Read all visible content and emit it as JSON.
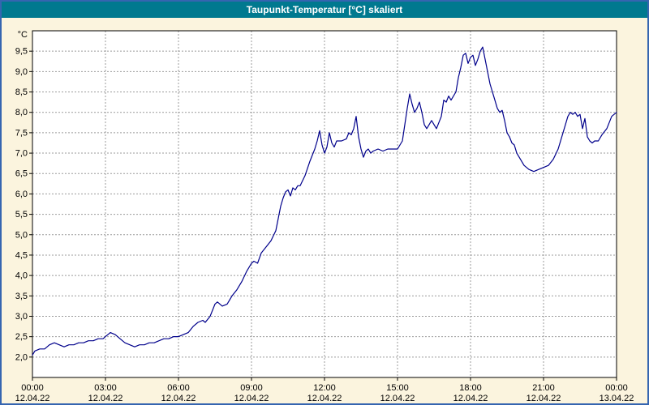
{
  "window": {
    "title": "Taupunkt-Temperatur [°C] skaliert"
  },
  "chart_data": {
    "type": "line",
    "title": "Taupunkt-Temperatur [°C] skaliert",
    "unit_label": "°C",
    "legend": "none",
    "grid": true,
    "x_min": 0,
    "x_max": 24,
    "y_min": 1.5,
    "y_max": 10.0,
    "y_ticks": [
      2.0,
      2.5,
      3.0,
      3.5,
      4.0,
      4.5,
      5.0,
      5.5,
      6.0,
      6.5,
      7.0,
      7.5,
      8.0,
      8.5,
      9.0,
      9.5
    ],
    "y_tick_labels": [
      "2,0",
      "2,5",
      "3,0",
      "3,5",
      "4,0",
      "4,5",
      "5,0",
      "5,5",
      "6,0",
      "6,5",
      "7,0",
      "7,5",
      "8,0",
      "8,5",
      "9,0",
      "9,5"
    ],
    "x_ticks": [
      {
        "hour": 0,
        "time": "00:00",
        "date": "12.04.22"
      },
      {
        "hour": 3,
        "time": "03:00",
        "date": "12.04.22"
      },
      {
        "hour": 6,
        "time": "06:00",
        "date": "12.04.22"
      },
      {
        "hour": 9,
        "time": "09:00",
        "date": "12.04.22"
      },
      {
        "hour": 12,
        "time": "12:00",
        "date": "12.04.22"
      },
      {
        "hour": 15,
        "time": "15:00",
        "date": "12.04.22"
      },
      {
        "hour": 18,
        "time": "18:00",
        "date": "12.04.22"
      },
      {
        "hour": 21,
        "time": "21:00",
        "date": "12.04.22"
      },
      {
        "hour": 24,
        "time": "00:00",
        "date": "13.04.22"
      }
    ],
    "colors": {
      "line": "#00008b",
      "grid": "#9b9b9b",
      "axis": "#000000",
      "plot_bg": "#ffffff",
      "page_bg": "#fbf4de",
      "title_bg": "#00798f",
      "title_fg": "#ffffff",
      "window_border": "#3565b0"
    },
    "series": [
      {
        "name": "Taupunkt-Temperatur",
        "points": [
          [
            0,
            2.05
          ],
          [
            0.1,
            2.15
          ],
          [
            0.3,
            2.2
          ],
          [
            0.5,
            2.2
          ],
          [
            0.7,
            2.3
          ],
          [
            0.9,
            2.35
          ],
          [
            1.1,
            2.3
          ],
          [
            1.3,
            2.25
          ],
          [
            1.5,
            2.3
          ],
          [
            1.7,
            2.3
          ],
          [
            1.9,
            2.35
          ],
          [
            2.1,
            2.35
          ],
          [
            2.3,
            2.4
          ],
          [
            2.5,
            2.4
          ],
          [
            2.7,
            2.45
          ],
          [
            2.9,
            2.45
          ],
          [
            3.0,
            2.5
          ],
          [
            3.2,
            2.6
          ],
          [
            3.4,
            2.55
          ],
          [
            3.6,
            2.45
          ],
          [
            3.8,
            2.35
          ],
          [
            4.0,
            2.3
          ],
          [
            4.2,
            2.25
          ],
          [
            4.4,
            2.3
          ],
          [
            4.6,
            2.3
          ],
          [
            4.8,
            2.35
          ],
          [
            5.0,
            2.35
          ],
          [
            5.2,
            2.4
          ],
          [
            5.4,
            2.45
          ],
          [
            5.6,
            2.45
          ],
          [
            5.8,
            2.5
          ],
          [
            6.0,
            2.5
          ],
          [
            6.2,
            2.55
          ],
          [
            6.4,
            2.6
          ],
          [
            6.6,
            2.75
          ],
          [
            6.8,
            2.85
          ],
          [
            7.0,
            2.9
          ],
          [
            7.1,
            2.85
          ],
          [
            7.3,
            3.0
          ],
          [
            7.5,
            3.3
          ],
          [
            7.6,
            3.35
          ],
          [
            7.8,
            3.25
          ],
          [
            8.0,
            3.3
          ],
          [
            8.2,
            3.5
          ],
          [
            8.4,
            3.65
          ],
          [
            8.6,
            3.85
          ],
          [
            8.8,
            4.1
          ],
          [
            9.0,
            4.3
          ],
          [
            9.1,
            4.35
          ],
          [
            9.25,
            4.3
          ],
          [
            9.4,
            4.55
          ],
          [
            9.6,
            4.7
          ],
          [
            9.8,
            4.85
          ],
          [
            10.0,
            5.1
          ],
          [
            10.1,
            5.4
          ],
          [
            10.2,
            5.7
          ],
          [
            10.3,
            5.9
          ],
          [
            10.4,
            6.05
          ],
          [
            10.5,
            6.1
          ],
          [
            10.6,
            5.95
          ],
          [
            10.7,
            6.15
          ],
          [
            10.8,
            6.1
          ],
          [
            10.9,
            6.2
          ],
          [
            11.0,
            6.2
          ],
          [
            11.2,
            6.45
          ],
          [
            11.4,
            6.8
          ],
          [
            11.6,
            7.1
          ],
          [
            11.7,
            7.3
          ],
          [
            11.8,
            7.55
          ],
          [
            11.9,
            7.2
          ],
          [
            12.0,
            7.0
          ],
          [
            12.1,
            7.15
          ],
          [
            12.2,
            7.5
          ],
          [
            12.3,
            7.25
          ],
          [
            12.4,
            7.15
          ],
          [
            12.5,
            7.3
          ],
          [
            12.7,
            7.3
          ],
          [
            12.9,
            7.35
          ],
          [
            13.0,
            7.5
          ],
          [
            13.1,
            7.45
          ],
          [
            13.2,
            7.6
          ],
          [
            13.3,
            7.9
          ],
          [
            13.4,
            7.4
          ],
          [
            13.5,
            7.1
          ],
          [
            13.6,
            6.9
          ],
          [
            13.7,
            7.05
          ],
          [
            13.8,
            7.1
          ],
          [
            13.9,
            7.0
          ],
          [
            14.0,
            7.05
          ],
          [
            14.2,
            7.1
          ],
          [
            14.4,
            7.05
          ],
          [
            14.6,
            7.1
          ],
          [
            14.8,
            7.1
          ],
          [
            15.0,
            7.1
          ],
          [
            15.2,
            7.3
          ],
          [
            15.4,
            8.1
          ],
          [
            15.5,
            8.45
          ],
          [
            15.6,
            8.2
          ],
          [
            15.7,
            8.0
          ],
          [
            15.8,
            8.1
          ],
          [
            15.9,
            8.25
          ],
          [
            16.0,
            8.0
          ],
          [
            16.1,
            7.7
          ],
          [
            16.2,
            7.6
          ],
          [
            16.4,
            7.8
          ],
          [
            16.5,
            7.7
          ],
          [
            16.6,
            7.6
          ],
          [
            16.8,
            7.9
          ],
          [
            16.9,
            8.3
          ],
          [
            17.0,
            8.25
          ],
          [
            17.1,
            8.4
          ],
          [
            17.2,
            8.3
          ],
          [
            17.4,
            8.5
          ],
          [
            17.5,
            8.85
          ],
          [
            17.6,
            9.1
          ],
          [
            17.7,
            9.4
          ],
          [
            17.8,
            9.45
          ],
          [
            17.9,
            9.2
          ],
          [
            18.0,
            9.35
          ],
          [
            18.1,
            9.4
          ],
          [
            18.2,
            9.15
          ],
          [
            18.3,
            9.3
          ],
          [
            18.4,
            9.5
          ],
          [
            18.5,
            9.6
          ],
          [
            18.6,
            9.3
          ],
          [
            18.7,
            9.0
          ],
          [
            18.8,
            8.7
          ],
          [
            19.0,
            8.3
          ],
          [
            19.1,
            8.1
          ],
          [
            19.2,
            8.0
          ],
          [
            19.3,
            8.05
          ],
          [
            19.4,
            7.8
          ],
          [
            19.5,
            7.5
          ],
          [
            19.6,
            7.4
          ],
          [
            19.7,
            7.25
          ],
          [
            19.8,
            7.2
          ],
          [
            19.9,
            7.0
          ],
          [
            20.0,
            6.9
          ],
          [
            20.2,
            6.7
          ],
          [
            20.4,
            6.6
          ],
          [
            20.6,
            6.55
          ],
          [
            20.8,
            6.6
          ],
          [
            21.0,
            6.65
          ],
          [
            21.2,
            6.7
          ],
          [
            21.4,
            6.85
          ],
          [
            21.6,
            7.1
          ],
          [
            21.8,
            7.5
          ],
          [
            22.0,
            7.9
          ],
          [
            22.1,
            8.0
          ],
          [
            22.2,
            7.95
          ],
          [
            22.3,
            8.0
          ],
          [
            22.4,
            7.9
          ],
          [
            22.5,
            7.95
          ],
          [
            22.6,
            7.6
          ],
          [
            22.7,
            7.85
          ],
          [
            22.8,
            7.4
          ],
          [
            22.9,
            7.3
          ],
          [
            23.0,
            7.25
          ],
          [
            23.1,
            7.3
          ],
          [
            23.25,
            7.3
          ],
          [
            23.4,
            7.45
          ],
          [
            23.6,
            7.6
          ],
          [
            23.8,
            7.9
          ],
          [
            24.0,
            8.0
          ]
        ]
      }
    ]
  }
}
